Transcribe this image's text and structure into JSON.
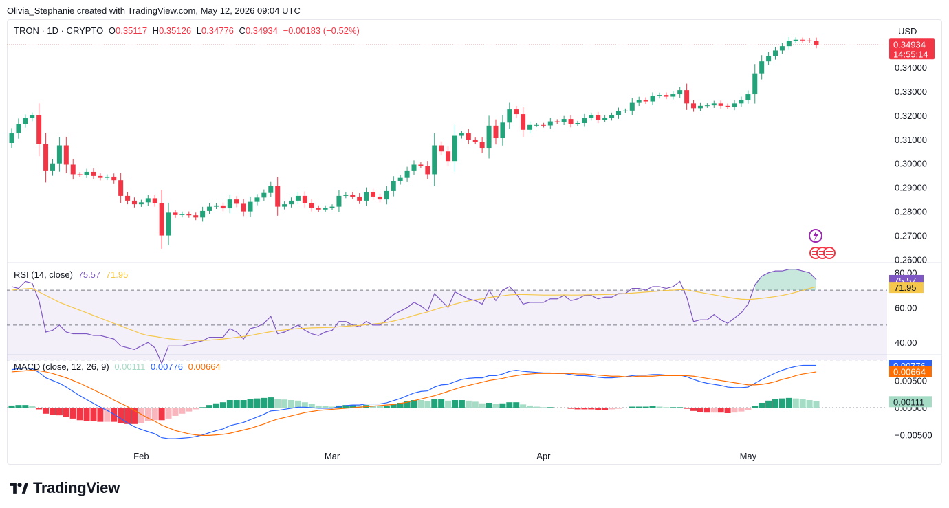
{
  "header": {
    "credit": "Olivia_Stephanie created with TradingView.com, May 12, 2026 09:04 UTC"
  },
  "legend": {
    "symbol": "TRON · 1D · CRYPTO",
    "o_label": "O",
    "o_value": "0.35117",
    "h_label": "H",
    "h_value": "0.35126",
    "l_label": "L",
    "l_value": "0.34776",
    "c_label": "C",
    "c_value": "0.34934",
    "change": "−0.00183 (−0.52%)"
  },
  "currency": "USD",
  "price_badge": {
    "price": "0.34934",
    "countdown": "14:55:14"
  },
  "rsi_legend": {
    "title": "RSI (14, close)",
    "rsi_value": "75.57",
    "ma_value": "71.95"
  },
  "macd_legend": {
    "title": "MACD (close, 12, 26, 9)",
    "hist_value": "0.00111",
    "macd_value": "0.00776",
    "signal_value": "0.00664"
  },
  "brand": {
    "name": "TradingView"
  },
  "colors": {
    "up": "#22a37a",
    "down": "#f23645",
    "rsi_line": "#7e57c2",
    "rsi_ma": "#f5c74a",
    "macd_line": "#2962ff",
    "signal_line": "#ff6d00",
    "hist_up_strong": "#22a37a",
    "hist_up_weak": "#a5dcc5",
    "hist_down_strong": "#f23645",
    "hist_down_weak": "#f9b6bd"
  },
  "chart_data": [
    {
      "type": "candlestick",
      "title": "TRON · 1D · CRYPTO",
      "ylabel": "USD",
      "ylim": [
        0.257,
        0.356
      ],
      "y_ticks": [
        "0.34000",
        "0.33000",
        "0.32000",
        "0.31000",
        "0.30000",
        "0.29000",
        "0.28000",
        "0.27000",
        "0.26000"
      ],
      "y_tick_values": [
        0.34,
        0.33,
        0.32,
        0.31,
        0.3,
        0.29,
        0.28,
        0.27,
        0.26
      ],
      "x_ticks": [
        {
          "label": "Feb",
          "index": 19
        },
        {
          "label": "Mar",
          "index": 47
        },
        {
          "label": "Apr",
          "index": 78
        },
        {
          "label": "May",
          "index": 108
        }
      ],
      "last_price": 0.34934,
      "closes": [
        0.3125,
        0.3165,
        0.3188,
        0.32,
        0.308,
        0.2968,
        0.3,
        0.3075,
        0.2995,
        0.2955,
        0.2952,
        0.2965,
        0.2948,
        0.294,
        0.2945,
        0.293,
        0.2865,
        0.2845,
        0.283,
        0.2838,
        0.2855,
        0.2835,
        0.27,
        0.2795,
        0.2785,
        0.279,
        0.2784,
        0.2775,
        0.2802,
        0.282,
        0.2825,
        0.2813,
        0.285,
        0.2832,
        0.28,
        0.284,
        0.2858,
        0.2877,
        0.2905,
        0.282,
        0.283,
        0.2845,
        0.2865,
        0.2835,
        0.2815,
        0.2808,
        0.2815,
        0.282,
        0.2865,
        0.287,
        0.2862,
        0.2845,
        0.288,
        0.2862,
        0.285,
        0.2885,
        0.2925,
        0.294,
        0.2968,
        0.2995,
        0.299,
        0.2955,
        0.3075,
        0.305,
        0.301,
        0.3115,
        0.3125,
        0.3097,
        0.309,
        0.3062,
        0.3157,
        0.3105,
        0.317,
        0.3225,
        0.3205,
        0.314,
        0.316,
        0.316,
        0.3158,
        0.3175,
        0.3172,
        0.3185,
        0.3165,
        0.3168,
        0.319,
        0.32,
        0.3182,
        0.319,
        0.32,
        0.3218,
        0.322,
        0.3252,
        0.3265,
        0.3258,
        0.328,
        0.3285,
        0.3278,
        0.3288,
        0.3305,
        0.325,
        0.323,
        0.324,
        0.3242,
        0.325,
        0.324,
        0.3235,
        0.325,
        0.3265,
        0.3288,
        0.3375,
        0.3425,
        0.3448,
        0.347,
        0.3488,
        0.351,
        0.3515,
        0.3512,
        0.351,
        0.3493
      ]
    },
    {
      "type": "line",
      "title": "RSI (14, close)",
      "ylim": [
        33,
        85
      ],
      "y_ticks": [
        "80.00",
        "60.00",
        "40.00"
      ],
      "y_tick_values": [
        80,
        60,
        40
      ],
      "bands": [
        70,
        50,
        30
      ],
      "rsi": [
        72,
        71,
        75,
        74,
        64,
        46,
        47,
        50,
        46,
        45,
        45,
        45,
        44,
        44,
        43,
        42,
        38,
        37,
        36,
        38,
        40,
        37,
        28,
        38,
        38,
        38,
        39,
        40,
        41,
        43,
        43,
        43,
        48,
        46,
        42,
        48,
        49,
        51,
        55,
        45,
        46,
        48,
        50,
        47,
        45,
        44,
        46,
        47,
        52,
        52,
        50,
        49,
        52,
        50,
        50,
        53,
        56,
        58,
        60,
        63,
        61,
        58,
        68,
        64,
        60,
        69,
        67,
        65,
        64,
        62,
        70,
        64,
        70,
        72,
        68,
        62,
        63,
        63,
        63,
        65,
        65,
        67,
        64,
        65,
        67,
        67,
        65,
        66,
        66,
        68,
        68,
        71,
        71,
        70,
        72,
        72,
        71,
        72,
        75,
        66,
        52,
        53,
        53,
        56,
        53,
        51,
        54,
        57,
        62,
        73,
        78,
        80,
        81,
        81,
        82,
        82,
        81,
        80,
        76
      ],
      "ma": [
        70,
        70.5,
        70.8,
        71,
        69,
        67,
        65,
        63,
        61.5,
        60,
        58.5,
        57,
        55.5,
        54,
        52.5,
        51,
        49.5,
        48,
        46.5,
        45,
        44,
        43.5,
        42.8,
        42.2,
        41.8,
        41.5,
        41.3,
        41.2,
        41.2,
        41.4,
        41.7,
        42,
        42.5,
        43,
        43.5,
        44,
        44.8,
        45.5,
        46.2,
        46.8,
        47.2,
        47.6,
        48,
        48.2,
        48.4,
        48.5,
        48.6,
        48.7,
        49,
        49.3,
        49.6,
        49.8,
        50.2,
        50.6,
        51,
        51.5,
        52.3,
        53.2,
        54.3,
        55.5,
        56.5,
        57.5,
        58.8,
        60,
        60.8,
        62,
        63,
        63.8,
        64.5,
        65,
        65.8,
        66.3,
        66.8,
        67.3,
        67.5,
        67.5,
        67.4,
        67.3,
        67.2,
        67.2,
        67.2,
        67.3,
        67.2,
        67.2,
        67.3,
        67.4,
        67.4,
        67.5,
        67.6,
        67.8,
        68,
        68.3,
        68.6,
        68.9,
        69.2,
        69.5,
        69.8,
        70,
        70.3,
        70.1,
        69.4,
        68.7,
        68,
        67.3,
        66.6,
        65.9,
        65.3,
        64.8,
        64.6,
        64.9,
        65.3,
        65.8,
        66.3,
        67,
        67.8,
        68.8,
        69.8,
        71,
        71.95
      ]
    },
    {
      "type": "line+bar",
      "title": "MACD (close, 12, 26, 9)",
      "ylim": [
        -0.0072,
        0.0095
      ],
      "y_ticks": [
        "0.00500",
        "0.00000",
        "−0.00500"
      ],
      "y_tick_values": [
        0.005,
        0,
        -0.005
      ],
      "macd": [
        0.007,
        0.0072,
        0.0073,
        0.0072,
        0.0065,
        0.0055,
        0.005,
        0.0045,
        0.0038,
        0.003,
        0.0022,
        0.0015,
        0.0008,
        0.0001,
        -0.0005,
        -0.0012,
        -0.002,
        -0.0028,
        -0.0035,
        -0.004,
        -0.0044,
        -0.0048,
        -0.0055,
        -0.0057,
        -0.0057,
        -0.0056,
        -0.0055,
        -0.0053,
        -0.005,
        -0.0046,
        -0.0042,
        -0.0039,
        -0.0033,
        -0.003,
        -0.0027,
        -0.0022,
        -0.0017,
        -0.0012,
        -0.0006,
        -0.0005,
        -0.0003,
        -0.0001,
        0.0001,
        0.0001,
        0.0,
        -0.0001,
        -0.0001,
        -0.0001,
        0.0002,
        0.0004,
        0.0005,
        0.0005,
        0.0007,
        0.0007,
        0.0007,
        0.0009,
        0.0013,
        0.0017,
        0.0022,
        0.0027,
        0.003,
        0.0031,
        0.0038,
        0.0042,
        0.0043,
        0.0048,
        0.0052,
        0.0054,
        0.0055,
        0.0055,
        0.0059,
        0.0059,
        0.0062,
        0.0067,
        0.0069,
        0.0067,
        0.0066,
        0.0065,
        0.0064,
        0.0064,
        0.0063,
        0.0063,
        0.0061,
        0.0059,
        0.0059,
        0.0058,
        0.0056,
        0.0055,
        0.0055,
        0.0056,
        0.0057,
        0.0059,
        0.006,
        0.006,
        0.0061,
        0.0061,
        0.006,
        0.006,
        0.006,
        0.0057,
        0.0052,
        0.0048,
        0.0045,
        0.0043,
        0.0041,
        0.0038,
        0.0037,
        0.0037,
        0.0038,
        0.0045,
        0.0052,
        0.0058,
        0.0064,
        0.0069,
        0.0073,
        0.0076,
        0.0078,
        0.0078,
        0.0078
      ],
      "signal": [
        0.0066,
        0.0067,
        0.0068,
        0.0069,
        0.0068,
        0.0066,
        0.0063,
        0.0059,
        0.0055,
        0.005,
        0.0045,
        0.0039,
        0.0033,
        0.0027,
        0.0021,
        0.0014,
        0.0008,
        0.0002,
        -0.0005,
        -0.0012,
        -0.0019,
        -0.0025,
        -0.0032,
        -0.0037,
        -0.0042,
        -0.0045,
        -0.0048,
        -0.005,
        -0.0051,
        -0.0051,
        -0.005,
        -0.0049,
        -0.0047,
        -0.0044,
        -0.0041,
        -0.0038,
        -0.0034,
        -0.003,
        -0.0025,
        -0.0021,
        -0.0018,
        -0.0015,
        -0.0012,
        -0.0009,
        -0.0007,
        -0.0005,
        -0.0004,
        -0.0003,
        -0.0002,
        -0.0001,
        0.0,
        0.0001,
        0.0002,
        0.0003,
        0.0004,
        0.0005,
        0.0006,
        0.0008,
        0.001,
        0.0013,
        0.0016,
        0.0019,
        0.0022,
        0.0026,
        0.003,
        0.0034,
        0.0038,
        0.0041,
        0.0044,
        0.0047,
        0.005,
        0.0052,
        0.0054,
        0.0057,
        0.0059,
        0.0061,
        0.0062,
        0.0063,
        0.0063,
        0.0063,
        0.0063,
        0.0063,
        0.0063,
        0.0062,
        0.0062,
        0.0061,
        0.006,
        0.0059,
        0.0058,
        0.0058,
        0.0057,
        0.0057,
        0.0058,
        0.0058,
        0.0058,
        0.0059,
        0.0059,
        0.0059,
        0.0059,
        0.0059,
        0.0058,
        0.0056,
        0.0054,
        0.0052,
        0.005,
        0.0048,
        0.0046,
        0.0044,
        0.0042,
        0.0042,
        0.0043,
        0.0045,
        0.0048,
        0.0052,
        0.0055,
        0.0059,
        0.0062,
        0.0064,
        0.0066
      ]
    }
  ]
}
